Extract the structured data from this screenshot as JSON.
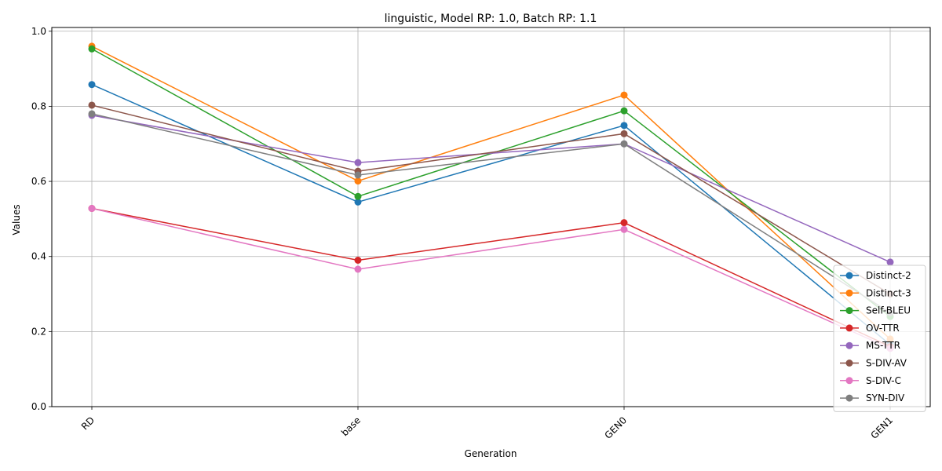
{
  "chart_data": {
    "type": "line",
    "title": "linguistic, Model RP: 1.0, Batch RP: 1.1",
    "xlabel": "Generation",
    "ylabel": "Values",
    "categories": [
      "RD",
      "base",
      "GEN0",
      "GEN1"
    ],
    "ylim": [
      0,
      1.01
    ],
    "yticks": [
      "0.0",
      "0.2",
      "0.4",
      "0.6",
      "0.8",
      "1.0"
    ],
    "grid": true,
    "legend_position": "lower-right",
    "series": [
      {
        "name": "Distinct-2",
        "color": "#1f77b4",
        "values": [
          0.858,
          0.545,
          0.749,
          0.165
        ]
      },
      {
        "name": "Distinct-3",
        "color": "#ff7f0e",
        "values": [
          0.96,
          0.601,
          0.83,
          0.18
        ]
      },
      {
        "name": "Self-BLEU",
        "color": "#2ca02c",
        "values": [
          0.953,
          0.56,
          0.788,
          0.24
        ]
      },
      {
        "name": "OV-TTR",
        "color": "#d62728",
        "values": [
          0.528,
          0.39,
          0.49,
          0.16
        ]
      },
      {
        "name": "MS-TTR",
        "color": "#9467bd",
        "values": [
          0.776,
          0.65,
          0.7,
          0.385
        ]
      },
      {
        "name": "S-DIV-AV",
        "color": "#8c564b",
        "values": [
          0.803,
          0.627,
          0.727,
          0.3
        ]
      },
      {
        "name": "S-DIV-C",
        "color": "#e377c2",
        "values": [
          0.528,
          0.366,
          0.472,
          0.155
        ]
      },
      {
        "name": "SYN-DIV",
        "color": "#7f7f7f",
        "values": [
          0.78,
          0.617,
          0.7,
          0.25
        ]
      }
    ]
  }
}
